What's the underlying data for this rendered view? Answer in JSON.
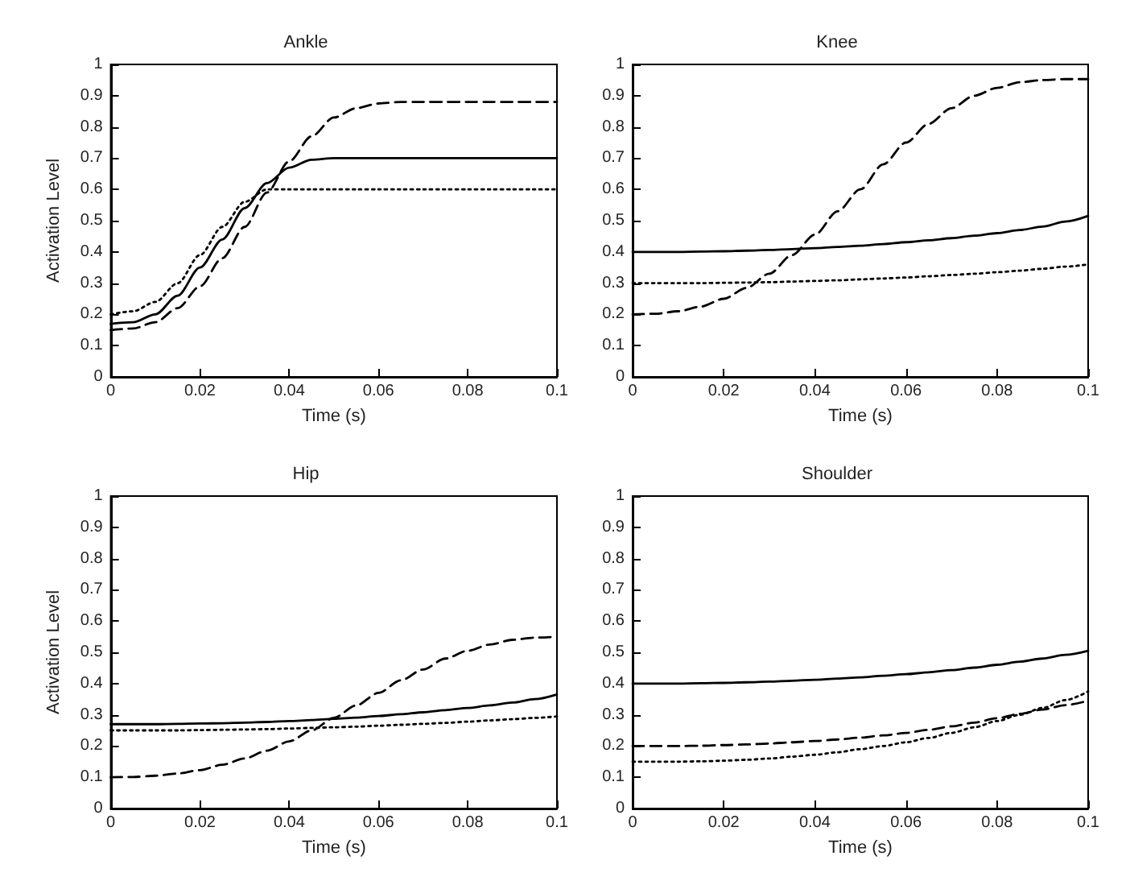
{
  "chart_data": [
    {
      "type": "line",
      "title": "Ankle",
      "xlabel": "Time (s)",
      "ylabel": "Activation Level",
      "x": [
        0,
        0.005,
        0.01,
        0.015,
        0.02,
        0.025,
        0.03,
        0.035,
        0.04,
        0.045,
        0.05,
        0.055,
        0.06,
        0.065,
        0.07,
        0.075,
        0.08,
        0.085,
        0.09,
        0.095,
        0.1
      ],
      "xlim": [
        0,
        0.1
      ],
      "xticks": [
        0,
        0.02,
        0.04,
        0.06,
        0.08,
        0.1
      ],
      "ylim": [
        0,
        1
      ],
      "yticks": [
        0,
        0.1,
        0.2,
        0.3,
        0.4,
        0.5,
        0.6,
        0.7,
        0.8,
        0.9,
        1
      ],
      "grid": false,
      "marker": "none",
      "series": [
        {
          "color": "#000000",
          "line_style": "solid",
          "values": [
            0.17,
            0.175,
            0.2,
            0.26,
            0.35,
            0.44,
            0.54,
            0.62,
            0.67,
            0.695,
            0.7,
            0.7,
            0.7,
            0.7,
            0.7,
            0.7,
            0.7,
            0.7,
            0.7,
            0.7,
            0.7
          ]
        },
        {
          "color": "#000000",
          "line_style": "dashed",
          "values": [
            0.15,
            0.155,
            0.175,
            0.22,
            0.29,
            0.38,
            0.48,
            0.59,
            0.69,
            0.77,
            0.83,
            0.86,
            0.875,
            0.88,
            0.88,
            0.88,
            0.88,
            0.88,
            0.88,
            0.88,
            0.88
          ]
        },
        {
          "color": "#000000",
          "line_style": "dotted",
          "values": [
            0.2,
            0.21,
            0.24,
            0.3,
            0.39,
            0.48,
            0.56,
            0.6,
            0.6,
            0.6,
            0.6,
            0.6,
            0.6,
            0.6,
            0.6,
            0.6,
            0.6,
            0.6,
            0.6,
            0.6,
            0.6
          ]
        }
      ]
    },
    {
      "type": "line",
      "title": "Knee",
      "xlabel": "Time (s)",
      "x": [
        0,
        0.005,
        0.01,
        0.015,
        0.02,
        0.025,
        0.03,
        0.035,
        0.04,
        0.045,
        0.05,
        0.055,
        0.06,
        0.065,
        0.07,
        0.075,
        0.08,
        0.085,
        0.09,
        0.095,
        0.1
      ],
      "xlim": [
        0,
        0.1
      ],
      "xticks": [
        0,
        0.02,
        0.04,
        0.06,
        0.08,
        0.1
      ],
      "ylim": [
        0,
        1
      ],
      "yticks": [
        0,
        0.1,
        0.2,
        0.3,
        0.4,
        0.5,
        0.6,
        0.7,
        0.8,
        0.9,
        1
      ],
      "grid": false,
      "marker": "none",
      "series": [
        {
          "color": "#000000",
          "line_style": "solid",
          "values": [
            0.4,
            0.4,
            0.4,
            0.401,
            0.402,
            0.404,
            0.406,
            0.409,
            0.412,
            0.416,
            0.42,
            0.425,
            0.431,
            0.437,
            0.444,
            0.452,
            0.46,
            0.47,
            0.481,
            0.497,
            0.515
          ]
        },
        {
          "color": "#000000",
          "line_style": "dashed",
          "values": [
            0.2,
            0.202,
            0.21,
            0.225,
            0.25,
            0.285,
            0.33,
            0.39,
            0.455,
            0.53,
            0.6,
            0.68,
            0.75,
            0.81,
            0.86,
            0.9,
            0.925,
            0.943,
            0.95,
            0.953,
            0.953
          ]
        },
        {
          "color": "#000000",
          "line_style": "dotted",
          "values": [
            0.3,
            0.3,
            0.3,
            0.3,
            0.301,
            0.302,
            0.303,
            0.305,
            0.307,
            0.309,
            0.312,
            0.315,
            0.318,
            0.322,
            0.326,
            0.33,
            0.335,
            0.34,
            0.346,
            0.353,
            0.36
          ]
        }
      ]
    },
    {
      "type": "line",
      "title": "Hip",
      "xlabel": "Time (s)",
      "ylabel": "Activation Level",
      "x": [
        0,
        0.005,
        0.01,
        0.015,
        0.02,
        0.025,
        0.03,
        0.035,
        0.04,
        0.045,
        0.05,
        0.055,
        0.06,
        0.065,
        0.07,
        0.075,
        0.08,
        0.085,
        0.09,
        0.095,
        0.1
      ],
      "xlim": [
        0,
        0.1
      ],
      "xticks": [
        0,
        0.02,
        0.04,
        0.06,
        0.08,
        0.1
      ],
      "ylim": [
        0,
        1
      ],
      "yticks": [
        0,
        0.1,
        0.2,
        0.3,
        0.4,
        0.5,
        0.6,
        0.7,
        0.8,
        0.9,
        1
      ],
      "grid": false,
      "marker": "none",
      "series": [
        {
          "color": "#000000",
          "line_style": "solid",
          "values": [
            0.27,
            0.27,
            0.27,
            0.271,
            0.272,
            0.273,
            0.275,
            0.277,
            0.28,
            0.283,
            0.287,
            0.291,
            0.296,
            0.302,
            0.308,
            0.315,
            0.322,
            0.33,
            0.339,
            0.35,
            0.365
          ]
        },
        {
          "color": "#000000",
          "line_style": "dashed",
          "values": [
            0.1,
            0.101,
            0.105,
            0.112,
            0.123,
            0.14,
            0.16,
            0.185,
            0.215,
            0.25,
            0.29,
            0.33,
            0.37,
            0.41,
            0.445,
            0.48,
            0.505,
            0.525,
            0.54,
            0.547,
            0.55
          ]
        },
        {
          "color": "#000000",
          "line_style": "dotted",
          "values": [
            0.25,
            0.25,
            0.25,
            0.25,
            0.251,
            0.252,
            0.253,
            0.254,
            0.256,
            0.258,
            0.26,
            0.262,
            0.265,
            0.268,
            0.271,
            0.274,
            0.278,
            0.282,
            0.286,
            0.29,
            0.295
          ]
        }
      ]
    },
    {
      "type": "line",
      "title": "Shoulder",
      "xlabel": "Time (s)",
      "x": [
        0,
        0.005,
        0.01,
        0.015,
        0.02,
        0.025,
        0.03,
        0.035,
        0.04,
        0.045,
        0.05,
        0.055,
        0.06,
        0.065,
        0.07,
        0.075,
        0.08,
        0.085,
        0.09,
        0.095,
        0.1
      ],
      "xlim": [
        0,
        0.1
      ],
      "xticks": [
        0,
        0.02,
        0.04,
        0.06,
        0.08,
        0.1
      ],
      "ylim": [
        0,
        1
      ],
      "yticks": [
        0,
        0.1,
        0.2,
        0.3,
        0.4,
        0.5,
        0.6,
        0.7,
        0.8,
        0.9,
        1
      ],
      "grid": false,
      "marker": "none",
      "series": [
        {
          "color": "#000000",
          "line_style": "solid",
          "values": [
            0.4,
            0.4,
            0.4,
            0.401,
            0.402,
            0.404,
            0.406,
            0.409,
            0.412,
            0.416,
            0.42,
            0.425,
            0.43,
            0.436,
            0.443,
            0.451,
            0.46,
            0.47,
            0.48,
            0.492,
            0.505
          ]
        },
        {
          "color": "#000000",
          "line_style": "dashed",
          "values": [
            0.2,
            0.2,
            0.2,
            0.201,
            0.203,
            0.205,
            0.208,
            0.212,
            0.216,
            0.221,
            0.227,
            0.234,
            0.242,
            0.252,
            0.263,
            0.275,
            0.289,
            0.303,
            0.317,
            0.331,
            0.345
          ]
        },
        {
          "color": "#000000",
          "line_style": "dotted",
          "values": [
            0.15,
            0.15,
            0.15,
            0.151,
            0.153,
            0.156,
            0.16,
            0.166,
            0.172,
            0.18,
            0.19,
            0.2,
            0.212,
            0.226,
            0.242,
            0.26,
            0.28,
            0.3,
            0.322,
            0.347,
            0.375
          ]
        }
      ]
    }
  ]
}
